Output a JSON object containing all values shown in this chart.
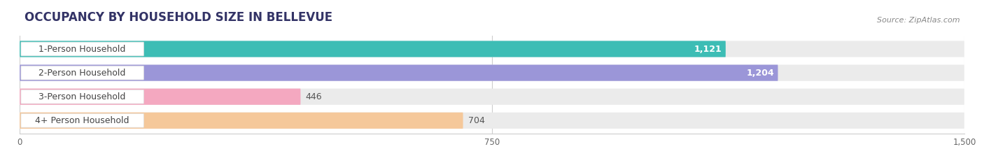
{
  "title": "OCCUPANCY BY HOUSEHOLD SIZE IN BELLEVUE",
  "source": "Source: ZipAtlas.com",
  "categories": [
    "1-Person Household",
    "2-Person Household",
    "3-Person Household",
    "4+ Person Household"
  ],
  "values": [
    1121,
    1204,
    446,
    704
  ],
  "bar_colors": [
    "#3dbdb5",
    "#9b96d8",
    "#f4a8c0",
    "#f5c89a"
  ],
  "bar_labels": [
    "1,121",
    "1,204",
    "446",
    "704"
  ],
  "label_inside": [
    true,
    true,
    false,
    false
  ],
  "xlim": [
    0,
    1500
  ],
  "xticks": [
    0,
    750,
    1500
  ],
  "background_color": "#ffffff",
  "bar_bg_color": "#ebebeb",
  "label_bg_color": "#ffffff",
  "title_fontsize": 12,
  "source_fontsize": 8,
  "bar_label_fontsize": 9,
  "category_fontsize": 9
}
